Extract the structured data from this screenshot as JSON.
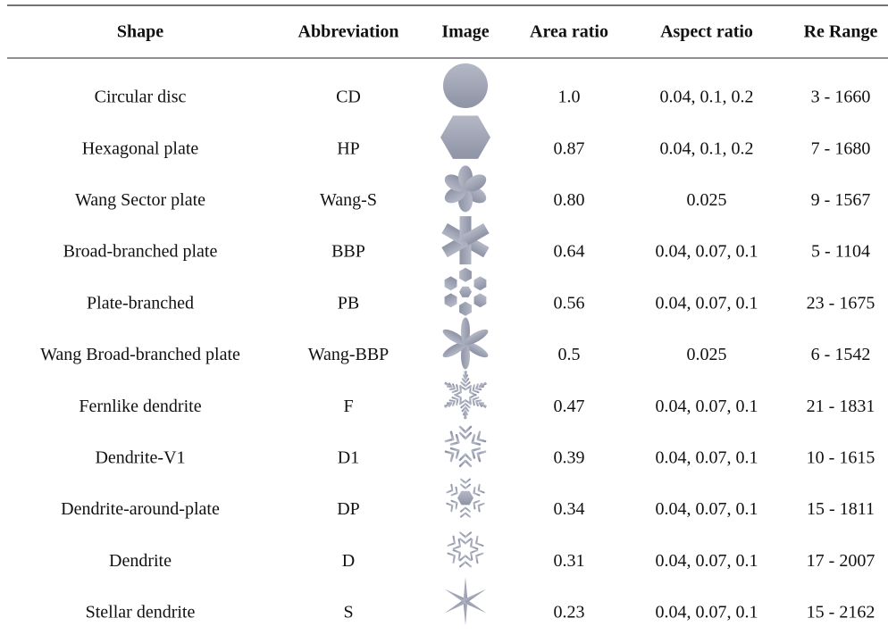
{
  "table": {
    "header": [
      "Shape",
      "Abbreviation",
      "Image",
      "Area ratio",
      "Aspect ratio",
      "Re Range"
    ],
    "rows": [
      [
        "Circular disc",
        "CD",
        "1.0",
        "0.04, 0.1, 0.2",
        "3 - 1660"
      ],
      [
        "Hexagonal plate",
        "HP",
        "0.87",
        "0.04, 0.1, 0.2",
        "7 - 1680"
      ],
      [
        "Wang Sector plate",
        "Wang-S",
        "0.80",
        "0.025",
        "9 - 1567"
      ],
      [
        "Broad-branched plate",
        "BBP",
        "0.64",
        "0.04, 0.07, 0.1",
        "5 - 1104"
      ],
      [
        "Plate-branched",
        "PB",
        "0.56",
        "0.04, 0.07, 0.1",
        "23 - 1675"
      ],
      [
        "Wang Broad-branched plate",
        "Wang-BBP",
        "0.5",
        "0.025",
        "6 - 1542"
      ],
      [
        "Fernlike dendrite",
        "F",
        "0.47",
        "0.04, 0.07, 0.1",
        "21 - 1831"
      ],
      [
        "Dendrite-V1",
        "D1",
        "0.39",
        "0.04, 0.07, 0.1",
        "10 - 1615"
      ],
      [
        "Dendrite-around-plate",
        "DP",
        "0.34",
        "0.04, 0.07, 0.1",
        "15 - 1811"
      ],
      [
        "Dendrite",
        "D",
        "0.31",
        "0.04, 0.07, 0.1",
        "17 - 2007"
      ],
      [
        "Stellar dendrite",
        "S",
        "0.23",
        "0.04, 0.07, 0.1",
        "15 - 2162"
      ]
    ]
  }
}
